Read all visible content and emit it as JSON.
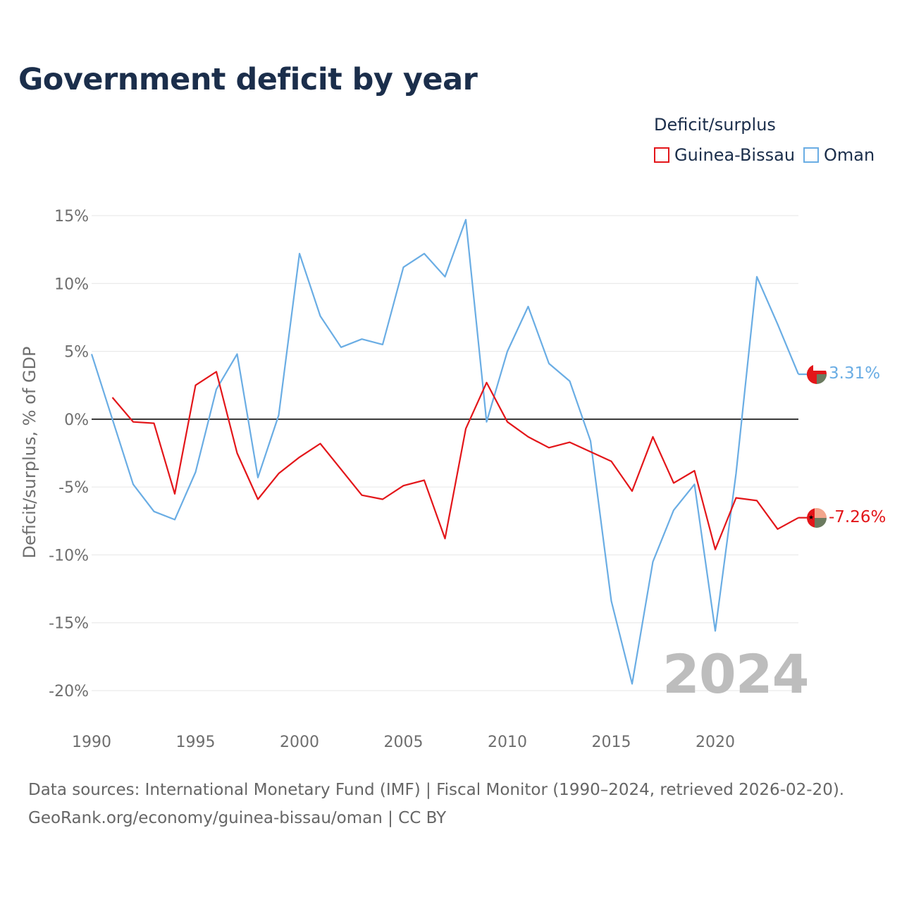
{
  "title": "Government deficit by year",
  "legend": {
    "title": "Deficit/surplus",
    "items": [
      {
        "name": "Guinea-Bissau",
        "color": "#e3161a"
      },
      {
        "name": "Oman",
        "color": "#6aade4"
      }
    ]
  },
  "year_label": "2024",
  "source": "Data sources: International Monetary Fund (IMF) | Fiscal Monitor (1990–2024, retrieved 2026-02-20).",
  "credit": "GeoRank.org/economy/guinea-bissau/oman | CC BY",
  "end_labels": {
    "oman": "3.31%",
    "guinea_bissau": "-7.26%"
  },
  "chart_data": {
    "type": "line",
    "title": "Government deficit by year",
    "xlabel": "",
    "ylabel": "Deficit/surplus, % of GDP",
    "xlim": [
      1990,
      2024
    ],
    "ylim": [
      -20,
      15
    ],
    "x_ticks": [
      1990,
      1995,
      2000,
      2005,
      2010,
      2015,
      2020
    ],
    "x_tick_labels": [
      "1990",
      "1995",
      "2000",
      "2005",
      "2010",
      "2015",
      "2020"
    ],
    "y_ticks": [
      15,
      10,
      5,
      0,
      -5,
      -10,
      -15,
      -20
    ],
    "y_tick_labels": [
      "15%",
      "10%",
      "5%",
      "0%",
      "-5%",
      "-10%",
      "-15%",
      "-20%"
    ],
    "grid": true,
    "legend_position": "top-right",
    "series": [
      {
        "name": "Guinea-Bissau",
        "color": "#e3161a",
        "x": [
          1991,
          1992,
          1993,
          1994,
          1995,
          1996,
          1997,
          1998,
          1999,
          2000,
          2001,
          2002,
          2003,
          2004,
          2005,
          2006,
          2007,
          2008,
          2009,
          2010,
          2011,
          2012,
          2013,
          2014,
          2015,
          2016,
          2017,
          2018,
          2019,
          2020,
          2021,
          2022,
          2023,
          2024
        ],
        "values": [
          1.6,
          -0.2,
          -0.3,
          -5.5,
          2.5,
          3.5,
          -2.5,
          -5.9,
          -4.0,
          -2.8,
          -1.8,
          -3.7,
          -5.6,
          -5.9,
          -4.9,
          -4.5,
          -8.8,
          -0.7,
          2.7,
          -0.2,
          -1.3,
          -2.1,
          -1.7,
          -2.4,
          -3.1,
          -5.3,
          -1.3,
          -4.7,
          -3.8,
          -9.6,
          -5.8,
          -6.0,
          -8.1,
          -7.26
        ]
      },
      {
        "name": "Oman",
        "color": "#6aade4",
        "x": [
          1990,
          1991,
          1992,
          1993,
          1994,
          1995,
          1996,
          1997,
          1998,
          1999,
          2000,
          2001,
          2002,
          2003,
          2004,
          2005,
          2006,
          2007,
          2008,
          2009,
          2010,
          2011,
          2012,
          2013,
          2014,
          2015,
          2016,
          2017,
          2018,
          2019,
          2020,
          2021,
          2022,
          2023,
          2024
        ],
        "values": [
          4.8,
          0.0,
          -4.8,
          -6.8,
          -7.4,
          -3.9,
          2.2,
          4.8,
          -4.3,
          0.3,
          12.2,
          7.6,
          5.3,
          5.9,
          5.5,
          11.2,
          12.2,
          10.5,
          14.7,
          -0.2,
          5.0,
          8.3,
          4.1,
          2.8,
          -1.6,
          -13.4,
          -19.5,
          -10.5,
          -6.7,
          -4.8,
          -15.6,
          -4.0,
          10.5,
          7.0,
          3.31
        ]
      }
    ]
  }
}
